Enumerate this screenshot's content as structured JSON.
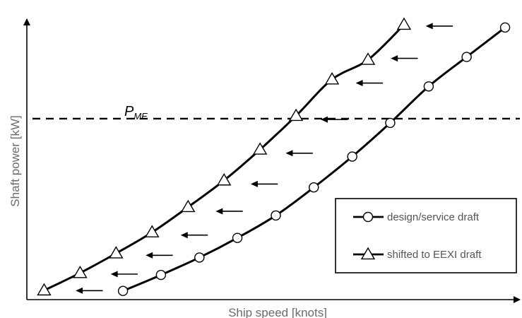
{
  "chart_data": {
    "type": "line",
    "title": "",
    "xlabel": "Ship speed [knots]",
    "ylabel": "Shaft power [kW]",
    "xlim": [
      0,
      1
    ],
    "ylim": [
      0,
      1
    ],
    "axis_ticks": "none",
    "grid": false,
    "legend_position": "bottom-right",
    "series": [
      {
        "name": "design/service draft",
        "marker": "circle",
        "color": "#000000",
        "x": [
          0.195,
          0.272,
          0.35,
          0.427,
          0.505,
          0.582,
          0.66,
          0.737,
          0.815,
          0.892,
          0.97
        ],
        "y": [
          0.031,
          0.088,
          0.15,
          0.22,
          0.3,
          0.4,
          0.51,
          0.63,
          0.76,
          0.865,
          0.97
        ]
      },
      {
        "name": "shifted to EEXI draft",
        "marker": "triangle",
        "color": "#000000",
        "x": [
          0.035,
          0.108,
          0.181,
          0.254,
          0.327,
          0.4,
          0.473,
          0.546,
          0.619,
          0.692,
          0.765
        ],
        "y": [
          0.033,
          0.095,
          0.165,
          0.24,
          0.33,
          0.425,
          0.535,
          0.655,
          0.785,
          0.855,
          0.98
        ]
      }
    ],
    "reference_lines": [
      {
        "label_main": "P",
        "label_sub": "ME",
        "orientation": "horizontal",
        "y": 0.645,
        "style": "dashed",
        "color": "#000000"
      }
    ],
    "annotations": {
      "shift_arrows": {
        "direction": "left",
        "count": 11,
        "x_start": [
          0.154,
          0.225,
          0.296,
          0.367,
          0.438,
          0.509,
          0.58,
          0.651,
          0.722,
          0.793,
          0.864
        ],
        "x_end": [
          0.099,
          0.17,
          0.241,
          0.312,
          0.383,
          0.454,
          0.525,
          0.596,
          0.667,
          0.738,
          0.809
        ],
        "y": [
          0.032,
          0.091,
          0.158,
          0.23,
          0.315,
          0.412,
          0.522,
          0.642,
          0.772,
          0.86,
          0.975
        ]
      }
    }
  },
  "colors": {
    "axis": "#000000",
    "curve": "#000000",
    "axis_label": "#6b6b6b",
    "legend_text": "#555555"
  }
}
